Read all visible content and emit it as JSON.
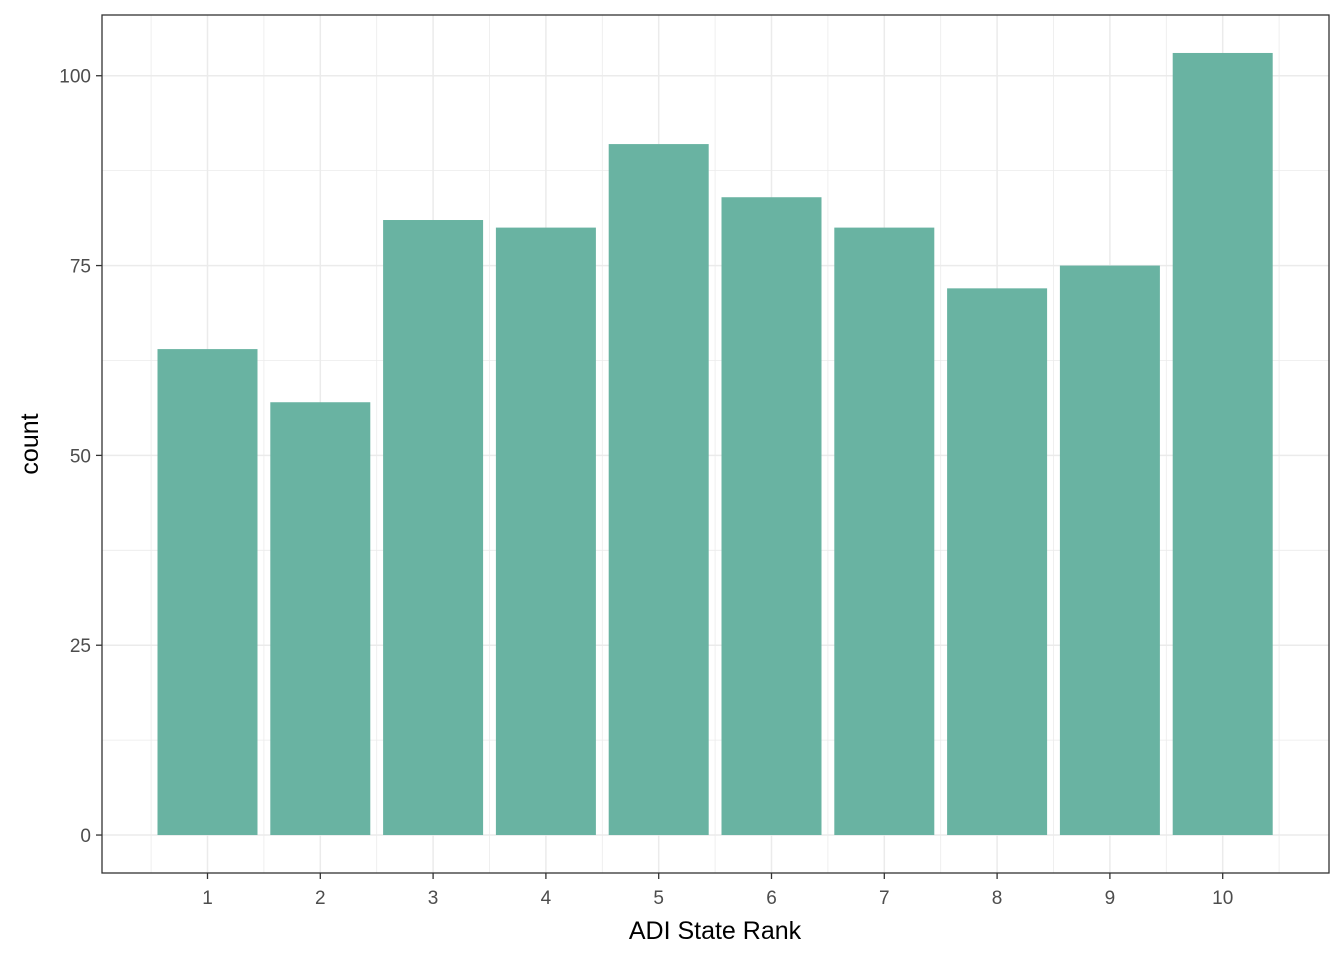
{
  "chart_data": {
    "type": "bar",
    "title": "",
    "xlabel": "ADI State Rank",
    "ylabel": "count",
    "categories": [
      "1",
      "2",
      "3",
      "4",
      "5",
      "6",
      "7",
      "8",
      "9",
      "10"
    ],
    "values": [
      64,
      57,
      81,
      80,
      91,
      84,
      80,
      72,
      75,
      103
    ],
    "ylim": [
      -5,
      108
    ],
    "yticks": [
      0,
      25,
      50,
      75,
      100
    ],
    "ytick_labels": [
      "0",
      "25",
      "50",
      "75",
      "100"
    ],
    "grid": true,
    "legend": "none",
    "colors": {
      "bar": "#69b3a2",
      "grid": "#ebebeb",
      "panel_border": "#333333",
      "tick_text": "#4d4d4d"
    }
  }
}
